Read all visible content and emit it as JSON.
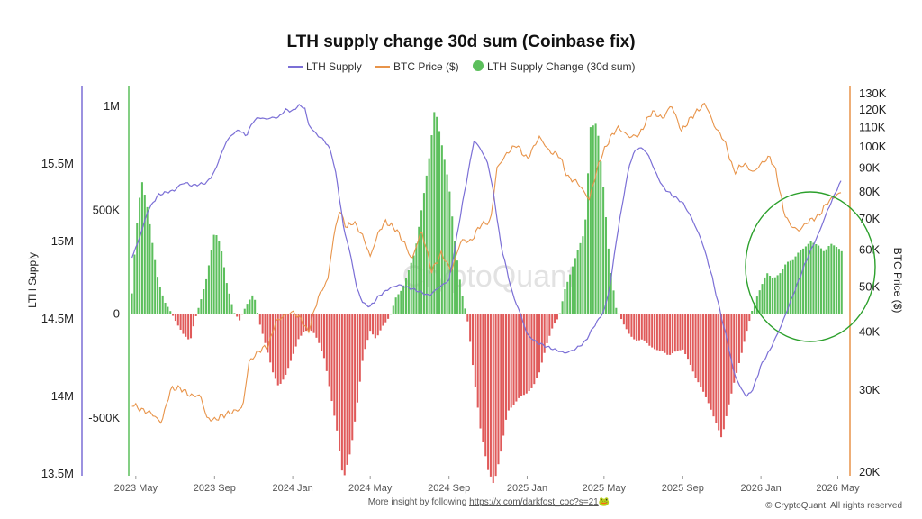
{
  "chart_data": {
    "type": "bar",
    "title": "LTH supply change 30d sum (Coinbase fix)",
    "legend": [
      {
        "label": "LTH Supply",
        "color": "#7b6fd6",
        "marker": "line"
      },
      {
        "label": "BTC Price ($)",
        "color": "#e8944a",
        "marker": "line"
      },
      {
        "label": "LTH Supply Change (30d sum)",
        "color": "#5cbf5c",
        "marker": "dot"
      }
    ],
    "legend_position": "top-center",
    "x_ticks": [
      "2023 May",
      "2023 Sep",
      "2024 Jan",
      "2024 May",
      "2024 Sep",
      "2025 Jan",
      "2025 May",
      "2025 Sep",
      "2026 Jan",
      "2026 May"
    ],
    "x_range": [
      "2023-04-20",
      "2026-05-20"
    ],
    "y_left_outer": {
      "label": "LTH Supply",
      "ticks": [
        "15.5M",
        "15M",
        "14.5M",
        "14M",
        "13.5M"
      ],
      "ylim": [
        13500000,
        15900000
      ],
      "color": "#7b6fd6"
    },
    "y_left_inner": {
      "label": "",
      "ticks": [
        "1M",
        "500K",
        "0",
        "-500K"
      ],
      "ylim": [
        -930000,
        1000000
      ],
      "color": "#5cbf5c"
    },
    "y_right": {
      "label": "BTC Price ($)",
      "ticks": [
        "130K",
        "120K",
        "110K",
        "100K",
        "90K",
        "80K",
        "70K",
        "60K",
        "50K",
        "40K",
        "30K",
        "20K"
      ],
      "scale": "log",
      "ylim": [
        20000,
        130000
      ],
      "color": "#e8944a"
    },
    "series": [
      {
        "name": "LTH Supply Change (30d sum)",
        "type": "bar",
        "positive_color": "#5cbf5c",
        "negative_color": "#e05a5a",
        "x": [
          "2023-04-25",
          "2023-05-01",
          "2023-05-10",
          "2023-05-20",
          "2023-05-28",
          "2023-06-05",
          "2023-06-15",
          "2023-06-25",
          "2023-07-05",
          "2023-07-15",
          "2023-07-25",
          "2023-08-01",
          "2023-08-10",
          "2023-08-20",
          "2023-09-01",
          "2023-09-10",
          "2023-09-20",
          "2023-10-01",
          "2023-10-10",
          "2023-10-20",
          "2023-11-01",
          "2023-11-10",
          "2023-11-20",
          "2023-12-01",
          "2023-12-10",
          "2023-12-20",
          "2024-01-01",
          "2024-01-10",
          "2024-01-20",
          "2024-02-01",
          "2024-02-10",
          "2024-02-20",
          "2024-03-01",
          "2024-03-10",
          "2024-03-20",
          "2024-04-01",
          "2024-04-10",
          "2024-04-20",
          "2024-05-01",
          "2024-05-10",
          "2024-05-20",
          "2024-06-01",
          "2024-06-10",
          "2024-06-20",
          "2024-07-01",
          "2024-07-10",
          "2024-07-20",
          "2024-08-01",
          "2024-08-10",
          "2024-08-20",
          "2024-09-01",
          "2024-09-10",
          "2024-09-20",
          "2024-10-01",
          "2024-10-10",
          "2024-10-20",
          "2024-11-01",
          "2024-11-10",
          "2024-11-20",
          "2024-12-01",
          "2024-12-10",
          "2024-12-20",
          "2025-01-01",
          "2025-01-10",
          "2025-01-20",
          "2025-02-01",
          "2025-02-10",
          "2025-02-20",
          "2025-03-01",
          "2025-03-10",
          "2025-03-20",
          "2025-04-01",
          "2025-04-10",
          "2025-04-20",
          "2025-05-01",
          "2025-05-10",
          "2025-05-20",
          "2025-06-01",
          "2025-06-10",
          "2025-06-20",
          "2025-07-01",
          "2025-07-10",
          "2025-07-20",
          "2025-08-01",
          "2025-08-10",
          "2025-08-20",
          "2025-09-01",
          "2025-09-10",
          "2025-09-20",
          "2025-10-01",
          "2025-10-10",
          "2025-10-20",
          "2025-11-01",
          "2025-11-10",
          "2025-11-20",
          "2025-12-01",
          "2025-12-10",
          "2025-12-20",
          "2026-01-01",
          "2026-01-10",
          "2026-01-20",
          "2026-02-01",
          "2026-02-10",
          "2026-02-20",
          "2026-03-01",
          "2026-03-10",
          "2026-03-20",
          "2026-04-01",
          "2026-04-10",
          "2026-04-20",
          "2026-05-01",
          "2026-05-08"
        ],
        "values": [
          100000,
          380000,
          650000,
          500000,
          320000,
          160000,
          60000,
          10000,
          -50000,
          -100000,
          -130000,
          -30000,
          60000,
          180000,
          400000,
          340000,
          150000,
          10000,
          -30000,
          40000,
          100000,
          -40000,
          -150000,
          -280000,
          -350000,
          -300000,
          -200000,
          -120000,
          -80000,
          -80000,
          -130000,
          -220000,
          -400000,
          -560000,
          -800000,
          -650000,
          -450000,
          -200000,
          -80000,
          -120000,
          -60000,
          -10000,
          80000,
          120000,
          220000,
          300000,
          500000,
          750000,
          1000000,
          830000,
          620000,
          350000,
          120000,
          -50000,
          -300000,
          -550000,
          -750000,
          -820000,
          -680000,
          -470000,
          -440000,
          -400000,
          -380000,
          -350000,
          -280000,
          -140000,
          -60000,
          -10000,
          120000,
          200000,
          300000,
          400000,
          900000,
          920000,
          580000,
          240000,
          30000,
          -50000,
          -100000,
          -130000,
          -120000,
          -150000,
          -170000,
          -180000,
          -200000,
          -180000,
          -170000,
          -220000,
          -300000,
          -360000,
          -420000,
          -500000,
          -600000,
          -460000,
          -330000,
          -200000,
          -80000,
          40000,
          130000,
          200000,
          170000,
          200000,
          250000,
          260000,
          300000,
          320000,
          350000,
          330000,
          300000,
          340000,
          320000,
          300000
        ]
      },
      {
        "name": "LTH Supply",
        "type": "line",
        "axis": "y_left_outer",
        "color": "#7b6fd6",
        "x": [
          "2023-04-25",
          "2023-05-05",
          "2023-05-20",
          "2023-06-05",
          "2023-06-20",
          "2023-07-01",
          "2023-07-10",
          "2023-07-20",
          "2023-07-25",
          "2023-08-10",
          "2023-08-20",
          "2023-09-01",
          "2023-09-10",
          "2023-09-20",
          "2023-10-01",
          "2023-10-10",
          "2023-10-20",
          "2023-11-01",
          "2023-11-10",
          "2023-11-20",
          "2023-12-01",
          "2023-12-10",
          "2023-12-20",
          "2024-01-01",
          "2024-01-10",
          "2024-01-20",
          "2024-01-25",
          "2024-02-01",
          "2024-02-10",
          "2024-02-20",
          "2024-03-01",
          "2024-03-10",
          "2024-03-20",
          "2024-04-01",
          "2024-04-10",
          "2024-04-20",
          "2024-05-01",
          "2024-05-15",
          "2024-06-01",
          "2024-06-15",
          "2024-07-01",
          "2024-07-15",
          "2024-08-01",
          "2024-08-15",
          "2024-09-01",
          "2024-09-10",
          "2024-09-20",
          "2024-10-01",
          "2024-10-10",
          "2024-10-20",
          "2024-11-01",
          "2024-11-10",
          "2024-11-20",
          "2024-12-01",
          "2024-12-10",
          "2024-12-20",
          "2025-01-01",
          "2025-01-15",
          "2025-02-01",
          "2025-02-15",
          "2025-03-01",
          "2025-03-15",
          "2025-04-01",
          "2025-04-15",
          "2025-05-01",
          "2025-05-10",
          "2025-05-20",
          "2025-06-01",
          "2025-06-10",
          "2025-06-20",
          "2025-07-01",
          "2025-07-10",
          "2025-07-20",
          "2025-08-01",
          "2025-08-15",
          "2025-09-01",
          "2025-09-15",
          "2025-10-01",
          "2025-10-15",
          "2025-11-01",
          "2025-11-10",
          "2025-11-20",
          "2025-12-01",
          "2025-12-10",
          "2025-12-20",
          "2026-01-01",
          "2026-01-15",
          "2026-02-01",
          "2026-02-15",
          "2026-03-01",
          "2026-03-15",
          "2026-04-01",
          "2026-04-15",
          "2026-05-01",
          "2026-05-08"
        ],
        "values": [
          14900000,
          15000000,
          15200000,
          15300000,
          15320000,
          15330000,
          15370000,
          15380000,
          15360000,
          15370000,
          15380000,
          15450000,
          15550000,
          15650000,
          15700000,
          15720000,
          15680000,
          15780000,
          15800000,
          15790000,
          15800000,
          15800000,
          15850000,
          15840000,
          15880000,
          15860000,
          15760000,
          15720000,
          15680000,
          15650000,
          15580000,
          15400000,
          15100000,
          14900000,
          14700000,
          14600000,
          14580000,
          14650000,
          14700000,
          14720000,
          14700000,
          14680000,
          14650000,
          14700000,
          14750000,
          14950000,
          15200000,
          15450000,
          15650000,
          15600000,
          15500000,
          15300000,
          15000000,
          14800000,
          14650000,
          14550000,
          14400000,
          14350000,
          14320000,
          14300000,
          14280000,
          14300000,
          14350000,
          14450000,
          14550000,
          14700000,
          15000000,
          15300000,
          15500000,
          15600000,
          15600000,
          15550000,
          15450000,
          15350000,
          15300000,
          15250000,
          15150000,
          15000000,
          14800000,
          14500000,
          14350000,
          14150000,
          14050000,
          14000000,
          14050000,
          14200000,
          14300000,
          14450000,
          14600000,
          14750000,
          14900000,
          15050000,
          15200000,
          15350000,
          15400000
        ]
      },
      {
        "name": "BTC Price ($)",
        "type": "line",
        "axis": "y_right",
        "color": "#e8944a",
        "x": [
          "2023-04-25",
          "2023-05-10",
          "2023-05-25",
          "2023-06-10",
          "2023-06-25",
          "2023-07-10",
          "2023-07-25",
          "2023-08-10",
          "2023-08-20",
          "2023-09-01",
          "2023-09-15",
          "2023-10-01",
          "2023-10-15",
          "2023-10-25",
          "2023-11-10",
          "2023-11-25",
          "2023-12-05",
          "2023-12-20",
          "2024-01-01",
          "2024-01-15",
          "2024-01-25",
          "2024-02-10",
          "2024-02-25",
          "2024-03-05",
          "2024-03-14",
          "2024-03-25",
          "2024-04-05",
          "2024-04-20",
          "2024-05-01",
          "2024-05-15",
          "2024-05-25",
          "2024-06-10",
          "2024-06-25",
          "2024-07-05",
          "2024-07-20",
          "2024-08-05",
          "2024-08-20",
          "2024-09-05",
          "2024-09-20",
          "2024-10-05",
          "2024-10-20",
          "2024-11-05",
          "2024-11-15",
          "2024-12-01",
          "2024-12-15",
          "2025-01-01",
          "2025-01-20",
          "2025-02-05",
          "2025-02-20",
          "2025-03-05",
          "2025-03-20",
          "2025-04-08",
          "2025-04-25",
          "2025-05-10",
          "2025-05-22",
          "2025-06-10",
          "2025-06-25",
          "2025-07-10",
          "2025-07-15",
          "2025-08-01",
          "2025-08-14",
          "2025-08-30",
          "2025-09-15",
          "2025-10-06",
          "2025-10-20",
          "2025-11-05",
          "2025-11-20",
          "2025-12-05",
          "2025-12-20",
          "2026-01-05",
          "2026-01-15",
          "2026-01-25",
          "2026-02-05",
          "2026-02-15",
          "2026-03-01",
          "2026-03-15",
          "2026-04-01",
          "2026-04-15",
          "2026-05-01",
          "2026-05-08"
        ],
        "values": [
          28000,
          27200,
          26800,
          25500,
          30200,
          30300,
          29200,
          29200,
          26100,
          25900,
          26500,
          27000,
          27500,
          34500,
          36500,
          37500,
          42000,
          43500,
          44200,
          42500,
          39800,
          47500,
          52000,
          64000,
          73000,
          67000,
          69000,
          64000,
          58000,
          66000,
          69000,
          66500,
          61500,
          57000,
          66000,
          54000,
          59000,
          54000,
          63000,
          62500,
          68000,
          69000,
          90000,
          97000,
          101000,
          94000,
          105000,
          97500,
          96000,
          86000,
          84000,
          77000,
          94000,
          104000,
          110000,
          105000,
          106000,
          116000,
          119000,
          115000,
          123000,
          108000,
          116000,
          124000,
          111000,
          103000,
          88000,
          92000,
          88000,
          93000,
          95000,
          88000,
          73000,
          68000,
          66000,
          69000,
          71000,
          76000,
          79000,
          80000
        ]
      }
    ],
    "annotation": {
      "shape": "ellipse",
      "color": "#2ca02c",
      "around": "2026 supply increase"
    }
  },
  "watermark": "CryptoQuant",
  "footer": {
    "insight_prefix": "More insight by following ",
    "insight_link": "https://x.com/darkfost_coc?s=21",
    "insight_emoji": "🐸",
    "copyright": "© CryptoQuant. All rights reserved"
  }
}
